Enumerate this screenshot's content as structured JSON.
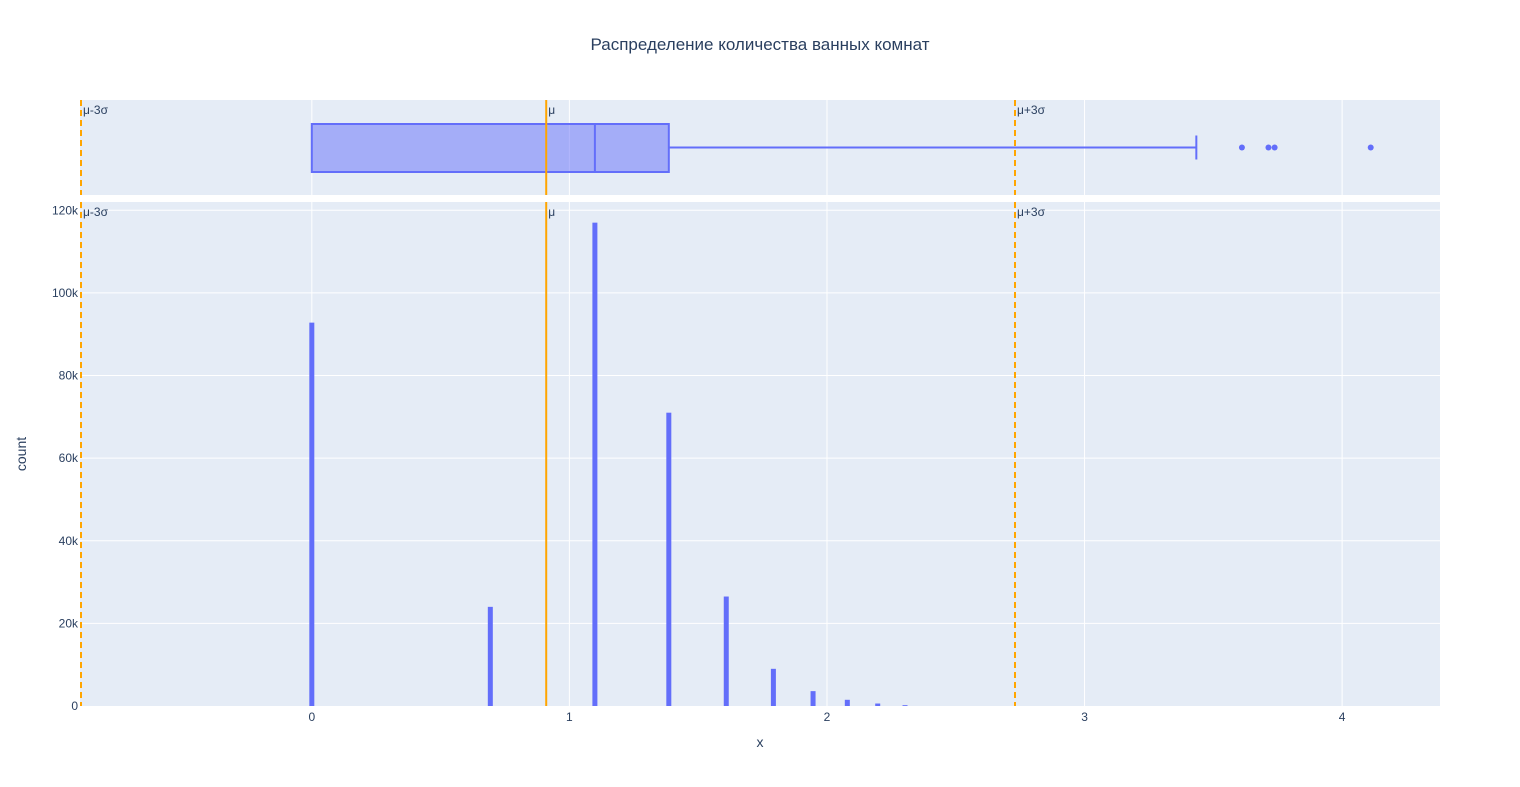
{
  "chart_data": {
    "type": "histogram",
    "title": "Распределение количества ванных комнат",
    "xlabel": "x",
    "ylabel": "count",
    "xlim": [
      -0.9,
      4.38
    ],
    "ylim": [
      0,
      122000
    ],
    "x_ticks": [
      0,
      1,
      2,
      3,
      4
    ],
    "x_tick_labels": [
      "0",
      "1",
      "2",
      "3",
      "4"
    ],
    "y_ticks": [
      0,
      20000,
      40000,
      60000,
      80000,
      100000,
      120000
    ],
    "y_tick_labels": [
      "0",
      "20k",
      "40k",
      "60k",
      "80k",
      "100k",
      "120k"
    ],
    "grid": true,
    "bar_color": "#636efa",
    "plot_bg": "#e5ecf6",
    "reference_color": "#ffa500",
    "bins": [
      {
        "x": 0.0,
        "count": 92800
      },
      {
        "x": 0.693,
        "count": 24000
      },
      {
        "x": 1.099,
        "count": 117000
      },
      {
        "x": 1.386,
        "count": 71000
      },
      {
        "x": 1.609,
        "count": 26500
      },
      {
        "x": 1.792,
        "count": 9000
      },
      {
        "x": 1.946,
        "count": 3600
      },
      {
        "x": 2.079,
        "count": 1500
      },
      {
        "x": 2.197,
        "count": 600
      },
      {
        "x": 2.303,
        "count": 200
      }
    ],
    "boxplot": {
      "q1": 0.0,
      "median": 1.099,
      "q3": 1.386,
      "lower_fence": 0.0,
      "upper_fence": 3.434,
      "outliers": [
        3.611,
        3.714,
        3.738,
        4.111
      ]
    },
    "reference_lines": [
      {
        "label": "μ-3σ",
        "x": -0.9,
        "style": "dashed"
      },
      {
        "label": "μ",
        "x": 0.91,
        "style": "solid"
      },
      {
        "label": "μ+3σ",
        "x": 2.73,
        "style": "dashed"
      }
    ]
  }
}
